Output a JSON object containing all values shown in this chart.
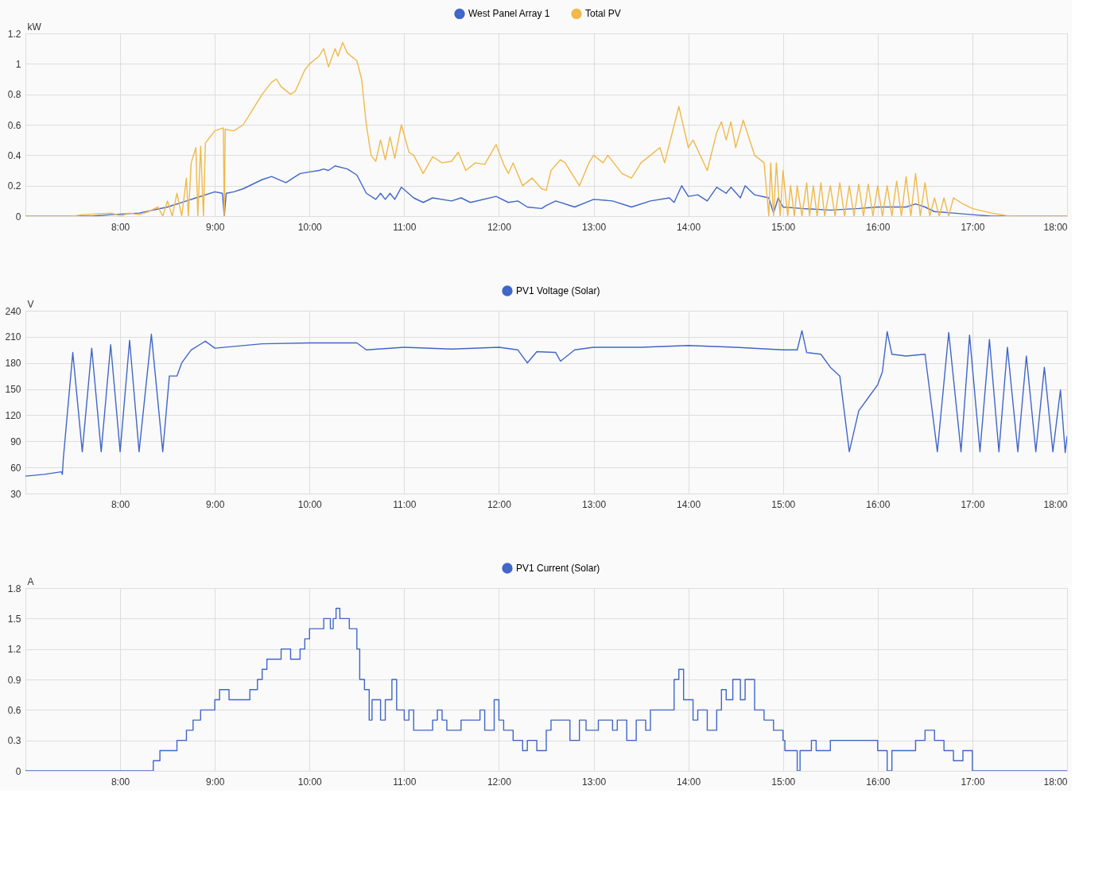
{
  "chart_data": [
    {
      "type": "line",
      "ylabel": "kW",
      "xlim": [
        7,
        18
      ],
      "ylim": [
        0,
        1.2
      ],
      "yticks": [
        0,
        0.2,
        0.4,
        0.6,
        0.8,
        1,
        1.2
      ],
      "xticks": [
        {
          "value": 8,
          "label": "8:00"
        },
        {
          "value": 9,
          "label": "9:00"
        },
        {
          "value": 10,
          "label": "10:00"
        },
        {
          "value": 11,
          "label": "11:00"
        },
        {
          "value": 12,
          "label": "12:00"
        },
        {
          "value": 13,
          "label": "13:00"
        },
        {
          "value": 14,
          "label": "14:00"
        },
        {
          "value": 15,
          "label": "15:00"
        },
        {
          "value": 16,
          "label": "16:00"
        },
        {
          "value": 17,
          "label": "17:00"
        },
        {
          "value": 18,
          "label": "18:00"
        }
      ],
      "grid": true,
      "legend": "top",
      "line_style": "solid",
      "marker": "none",
      "series": [
        {
          "name": "West Panel Array 1",
          "color": "#4066c9",
          "x": [
            7.0,
            7.7,
            7.9,
            8.2,
            8.5,
            8.7,
            8.8,
            9.0,
            9.08,
            9.1,
            9.12,
            9.2,
            9.3,
            9.5,
            9.6,
            9.75,
            9.9,
            10.0,
            10.1,
            10.15,
            10.2,
            10.27,
            10.4,
            10.5,
            10.6,
            10.7,
            10.75,
            10.8,
            10.85,
            10.9,
            10.97,
            11.1,
            11.2,
            11.3,
            11.5,
            11.6,
            11.7,
            11.97,
            12.1,
            12.2,
            12.3,
            12.45,
            12.5,
            12.6,
            12.8,
            13.0,
            13.2,
            13.4,
            13.6,
            13.8,
            13.85,
            13.93,
            14.0,
            14.1,
            14.2,
            14.3,
            14.4,
            14.45,
            14.55,
            14.6,
            14.7,
            14.85,
            14.9,
            14.95,
            15.0,
            15.2,
            15.5,
            15.8,
            16.0,
            16.3,
            16.4,
            16.5,
            16.6,
            16.8,
            17.0,
            17.2,
            18.0
          ],
          "values": [
            0,
            0,
            0.01,
            0.02,
            0.06,
            0.1,
            0.12,
            0.16,
            0.15,
            0,
            0.15,
            0.16,
            0.18,
            0.24,
            0.26,
            0.22,
            0.28,
            0.29,
            0.3,
            0.31,
            0.3,
            0.33,
            0.31,
            0.27,
            0.15,
            0.11,
            0.15,
            0.11,
            0.15,
            0.11,
            0.19,
            0.12,
            0.09,
            0.12,
            0.1,
            0.12,
            0.09,
            0.13,
            0.09,
            0.1,
            0.06,
            0.05,
            0.07,
            0.1,
            0.06,
            0.11,
            0.1,
            0.06,
            0.1,
            0.12,
            0.09,
            0.2,
            0.13,
            0.14,
            0.1,
            0.19,
            0.15,
            0.19,
            0.12,
            0.2,
            0.14,
            0.12,
            0.02,
            0.12,
            0.06,
            0.05,
            0.04,
            0.05,
            0.06,
            0.06,
            0.08,
            0.06,
            0.03,
            0.02,
            0.01,
            0,
            0
          ]
        },
        {
          "name": "Total PV",
          "color": "#f0b94a",
          "x": [
            7.0,
            7.5,
            7.6,
            7.9,
            7.97,
            8.0,
            8.1,
            8.2,
            8.3,
            8.4,
            8.45,
            8.5,
            8.55,
            8.6,
            8.65,
            8.7,
            8.72,
            8.75,
            8.8,
            8.82,
            8.85,
            8.88,
            8.9,
            9.0,
            9.09,
            9.1,
            9.11,
            9.2,
            9.3,
            9.4,
            9.5,
            9.6,
            9.65,
            9.7,
            9.8,
            9.85,
            9.95,
            10.0,
            10.1,
            10.15,
            10.2,
            10.27,
            10.3,
            10.35,
            10.4,
            10.5,
            10.55,
            10.6,
            10.65,
            10.7,
            10.75,
            10.8,
            10.85,
            10.9,
            10.97,
            11.05,
            11.1,
            11.2,
            11.3,
            11.4,
            11.5,
            11.57,
            11.65,
            11.75,
            11.85,
            11.97,
            12.05,
            12.1,
            12.15,
            12.25,
            12.35,
            12.45,
            12.5,
            12.55,
            12.65,
            12.7,
            12.8,
            12.85,
            12.95,
            13.0,
            13.1,
            13.15,
            13.3,
            13.4,
            13.5,
            13.6,
            13.7,
            13.75,
            13.9,
            14.0,
            14.05,
            14.2,
            14.3,
            14.35,
            14.4,
            14.45,
            14.5,
            14.58,
            14.7,
            14.8,
            14.85,
            14.87,
            14.9,
            14.93,
            14.97,
            15.0,
            15.05,
            15.08,
            15.12,
            15.15,
            15.2,
            15.25,
            15.28,
            15.32,
            15.36,
            15.4,
            15.44,
            15.5,
            15.55,
            15.6,
            15.65,
            15.7,
            15.75,
            15.8,
            15.85,
            15.9,
            15.95,
            16.0,
            16.05,
            16.1,
            16.15,
            16.2,
            16.25,
            16.3,
            16.35,
            16.4,
            16.45,
            16.5,
            16.55,
            16.6,
            16.65,
            16.7,
            16.75,
            16.8,
            16.9,
            17.0,
            17.2,
            17.4,
            18.0
          ],
          "values": [
            0,
            0,
            0.01,
            0.02,
            0.01,
            0,
            0.02,
            0.01,
            0.03,
            0.06,
            0,
            0.1,
            0,
            0.15,
            0,
            0.25,
            0,
            0.35,
            0.45,
            0,
            0.46,
            0,
            0.48,
            0.56,
            0.58,
            0,
            0.57,
            0.56,
            0.6,
            0.7,
            0.8,
            0.88,
            0.9,
            0.85,
            0.8,
            0.82,
            0.96,
            1.0,
            1.05,
            1.1,
            0.98,
            1.1,
            1.05,
            1.14,
            1.07,
            1.02,
            0.9,
            0.6,
            0.4,
            0.36,
            0.5,
            0.37,
            0.52,
            0.38,
            0.6,
            0.42,
            0.4,
            0.28,
            0.39,
            0.35,
            0.36,
            0.42,
            0.3,
            0.35,
            0.34,
            0.47,
            0.34,
            0.28,
            0.35,
            0.2,
            0.25,
            0.18,
            0.17,
            0.3,
            0.37,
            0.35,
            0.25,
            0.2,
            0.35,
            0.4,
            0.35,
            0.4,
            0.28,
            0.25,
            0.35,
            0.4,
            0.45,
            0.35,
            0.72,
            0.45,
            0.5,
            0.3,
            0.55,
            0.62,
            0.5,
            0.62,
            0.45,
            0.63,
            0.4,
            0.35,
            0,
            0.35,
            0,
            0.35,
            0,
            0.3,
            0,
            0.2,
            0,
            0.2,
            0,
            0.22,
            0,
            0.2,
            0,
            0.22,
            0,
            0.2,
            0,
            0.22,
            0,
            0.2,
            0,
            0.21,
            0,
            0.21,
            0,
            0.2,
            0,
            0.2,
            0,
            0.23,
            0,
            0.26,
            0,
            0.28,
            0,
            0.22,
            0,
            0.12,
            0,
            0.12,
            0,
            0.12,
            0.08,
            0.05,
            0.02,
            0,
            0
          ]
        }
      ]
    },
    {
      "type": "line",
      "ylabel": "V",
      "xlim": [
        7,
        18
      ],
      "ylim": [
        30,
        240
      ],
      "yticks": [
        30,
        60,
        90,
        120,
        150,
        180,
        210,
        240
      ],
      "xticks": [
        {
          "value": 8,
          "label": "8:00"
        },
        {
          "value": 9,
          "label": "9:00"
        },
        {
          "value": 10,
          "label": "10:00"
        },
        {
          "value": 11,
          "label": "11:00"
        },
        {
          "value": 12,
          "label": "12:00"
        },
        {
          "value": 13,
          "label": "13:00"
        },
        {
          "value": 14,
          "label": "14:00"
        },
        {
          "value": 15,
          "label": "15:00"
        },
        {
          "value": 16,
          "label": "16:00"
        },
        {
          "value": 17,
          "label": "17:00"
        },
        {
          "value": 18,
          "label": "18:00"
        }
      ],
      "grid": true,
      "legend": "top",
      "line_style": "solid",
      "marker": "none",
      "series": [
        {
          "name": "PV1 Voltage (Solar)",
          "color": "#4066c9",
          "x": [
            7.0,
            7.2,
            7.38,
            7.39,
            7.4,
            7.5,
            7.6,
            7.7,
            7.8,
            7.9,
            8.0,
            8.1,
            8.2,
            8.33,
            8.45,
            8.52,
            8.6,
            8.65,
            8.75,
            8.9,
            9.0,
            9.5,
            10.0,
            10.5,
            10.6,
            11.0,
            11.5,
            12.0,
            12.2,
            12.3,
            12.4,
            12.6,
            12.65,
            12.8,
            13.0,
            13.5,
            14.0,
            14.5,
            15.0,
            15.15,
            15.2,
            15.25,
            15.4,
            15.5,
            15.6,
            15.7,
            15.8,
            15.9,
            16.0,
            16.05,
            16.1,
            16.15,
            16.3,
            16.5,
            16.63,
            16.75,
            16.88,
            16.97,
            17.08,
            17.18,
            17.28,
            17.37,
            17.48,
            17.57,
            17.67,
            17.76,
            17.85,
            17.93,
            17.98,
            18.0
          ],
          "values": [
            50,
            52,
            55,
            52,
            70,
            192,
            78,
            197,
            78,
            201,
            78,
            206,
            78,
            213,
            78,
            165,
            165,
            180,
            195,
            205,
            197,
            202,
            203,
            203,
            195,
            198,
            196,
            198,
            195,
            180,
            193,
            192,
            182,
            195,
            198,
            198,
            200,
            198,
            195,
            195,
            217,
            192,
            190,
            175,
            165,
            78,
            125,
            140,
            155,
            170,
            216,
            190,
            188,
            190,
            78,
            215,
            78,
            212,
            78,
            207,
            78,
            198,
            78,
            188,
            78,
            175,
            78,
            149,
            77,
            96
          ]
        }
      ]
    },
    {
      "type": "step",
      "ylabel": "A",
      "xlim": [
        7,
        18
      ],
      "ylim": [
        0,
        1.8
      ],
      "yticks": [
        0,
        0.3,
        0.6,
        0.9,
        1.2,
        1.5,
        1.8
      ],
      "xticks": [
        {
          "value": 8,
          "label": "8:00"
        },
        {
          "value": 9,
          "label": "9:00"
        },
        {
          "value": 10,
          "label": "10:00"
        },
        {
          "value": 11,
          "label": "11:00"
        },
        {
          "value": 12,
          "label": "12:00"
        },
        {
          "value": 13,
          "label": "13:00"
        },
        {
          "value": 14,
          "label": "14:00"
        },
        {
          "value": 15,
          "label": "15:00"
        },
        {
          "value": 16,
          "label": "16:00"
        },
        {
          "value": 17,
          "label": "17:00"
        },
        {
          "value": 18,
          "label": "18:00"
        }
      ],
      "grid": true,
      "legend": "top",
      "line_style": "solid",
      "marker": "none",
      "series": [
        {
          "name": "PV1 Current (Solar)",
          "color": "#4066c9",
          "x": [
            7.0,
            8.35,
            8.42,
            8.6,
            8.7,
            8.77,
            8.85,
            9.0,
            9.05,
            9.15,
            9.3,
            9.37,
            9.45,
            9.5,
            9.55,
            9.7,
            9.8,
            9.9,
            9.95,
            10.0,
            10.15,
            10.22,
            10.25,
            10.28,
            10.32,
            10.42,
            10.5,
            10.53,
            10.58,
            10.63,
            10.66,
            10.75,
            10.8,
            10.87,
            10.92,
            11.0,
            11.05,
            11.1,
            11.3,
            11.35,
            11.4,
            11.45,
            11.6,
            11.8,
            11.85,
            11.95,
            12.0,
            12.05,
            12.15,
            12.25,
            12.3,
            12.4,
            12.5,
            12.55,
            12.75,
            12.85,
            12.92,
            13.05,
            13.2,
            13.25,
            13.35,
            13.45,
            13.55,
            13.6,
            13.75,
            13.85,
            13.9,
            13.95,
            14.05,
            14.1,
            14.2,
            14.3,
            14.35,
            14.4,
            14.47,
            14.55,
            14.6,
            14.7,
            14.8,
            14.9,
            15.0,
            15.02,
            15.15,
            15.18,
            15.3,
            15.35,
            15.5,
            16.0,
            16.1,
            16.15,
            16.4,
            16.5,
            16.6,
            16.7,
            16.8,
            16.9,
            17.0,
            18.0
          ],
          "values": [
            0,
            0.1,
            0.2,
            0.3,
            0.4,
            0.5,
            0.6,
            0.7,
            0.8,
            0.7,
            0.7,
            0.8,
            0.9,
            1.0,
            1.1,
            1.2,
            1.1,
            1.2,
            1.3,
            1.4,
            1.5,
            1.4,
            1.5,
            1.6,
            1.5,
            1.4,
            1.2,
            0.9,
            0.8,
            0.5,
            0.7,
            0.5,
            0.7,
            0.9,
            0.6,
            0.5,
            0.6,
            0.4,
            0.5,
            0.6,
            0.5,
            0.4,
            0.5,
            0.6,
            0.4,
            0.7,
            0.5,
            0.4,
            0.3,
            0.2,
            0.3,
            0.2,
            0.4,
            0.5,
            0.3,
            0.5,
            0.4,
            0.5,
            0.4,
            0.5,
            0.3,
            0.5,
            0.4,
            0.6,
            0.6,
            0.9,
            1.0,
            0.7,
            0.5,
            0.6,
            0.4,
            0.6,
            0.8,
            0.7,
            0.9,
            0.7,
            0.9,
            0.6,
            0.5,
            0.4,
            0.3,
            0.2,
            0.0,
            0.2,
            0.3,
            0.2,
            0.3,
            0.2,
            0.0,
            0.2,
            0.3,
            0.4,
            0.3,
            0.2,
            0.1,
            0.2,
            0.0,
            0
          ]
        }
      ]
    }
  ]
}
